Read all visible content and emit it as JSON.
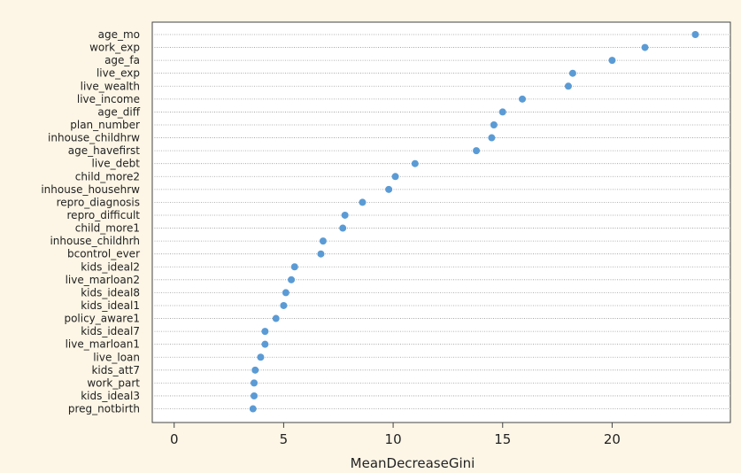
{
  "chart_data": {
    "type": "scatter",
    "title": "",
    "xlabel": "MeanDecreaseGini",
    "ylabel": "",
    "xlim": [
      -1,
      25.4
    ],
    "xticks": [
      0,
      5,
      10,
      15,
      20
    ],
    "grid": "horizontal dotted",
    "point_color": "#5b9bd5",
    "categories": [
      "age_mo",
      "work_exp",
      "age_fa",
      "live_exp",
      "live_wealth",
      "live_income",
      "age_diff",
      "plan_number",
      "inhouse_childhrw",
      "age_havefirst",
      "live_debt",
      "child_more2",
      "inhouse_househrw",
      "repro_diagnosis",
      "repro_difficult",
      "child_more1",
      "inhouse_childhrh",
      "bcontrol_ever",
      "kids_ideal2",
      "live_marloan2",
      "kids_ideal8",
      "kids_ideal1",
      "policy_aware1",
      "kids_ideal7",
      "live_marloan1",
      "live_loan",
      "kids_att7",
      "work_part",
      "kids_ideal3",
      "preg_notbirth"
    ],
    "values": [
      23.8,
      21.5,
      20.0,
      18.2,
      18.0,
      15.9,
      15.0,
      14.6,
      14.5,
      13.8,
      11.0,
      10.1,
      9.8,
      8.6,
      7.8,
      7.7,
      6.8,
      6.7,
      5.5,
      5.35,
      5.1,
      5.0,
      4.65,
      4.15,
      4.15,
      3.95,
      3.7,
      3.65,
      3.65,
      3.6
    ]
  }
}
